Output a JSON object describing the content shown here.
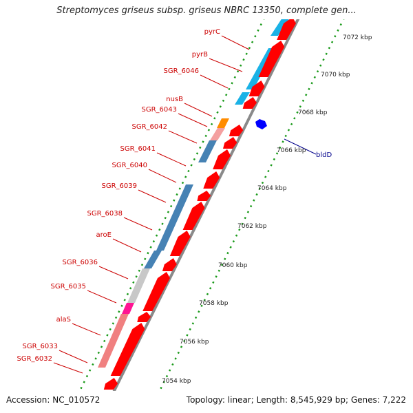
{
  "header": {
    "title": "Streptomyces griseus subsp. griseus NBRC 13350, complete gen..."
  },
  "footer": {
    "accession_label": "Accession:",
    "accession": "NC_010572",
    "topology_label": "Topology:",
    "topology": "linear",
    "length_label": "Length:",
    "length": "8,545,929 bp",
    "genes_label": "Genes:",
    "genes": "7,222"
  },
  "scale": {
    "ticks": [
      "7072 kbp",
      "7070 kbp",
      "7068 kbp",
      "7066 kbp",
      "7064 kbp",
      "7062 kbp",
      "7060 kbp",
      "7058 kbp",
      "7056 kbp",
      "7054 kbp"
    ]
  },
  "gene_labels_left": [
    "pyrC",
    "pyrB",
    "SGR_6046",
    "nusB",
    "SGR_6043",
    "SGR_6042",
    "SGR_6041",
    "SGR_6040",
    "SGR_6039",
    "SGR_6038",
    "aroE",
    "SGR_6036",
    "SGR_6035",
    "alaS",
    "SGR_6033",
    "SGR_6032"
  ],
  "gene_labels_right": [
    "bldD"
  ],
  "colors": {
    "cds": "#ff0000",
    "cds_light": "#f08080",
    "backbone": "#888888",
    "cyan": "#1ab2e6",
    "steelblue": "#4682b4",
    "orange": "#ff8c00",
    "lightpink": "#f4a0a0",
    "gray": "#c0c0c0",
    "magenta": "#ff1493",
    "blue": "#0000ff",
    "green_dots": "#1a9a1a",
    "label_left": "#cc0000",
    "label_right": "#00008b"
  }
}
